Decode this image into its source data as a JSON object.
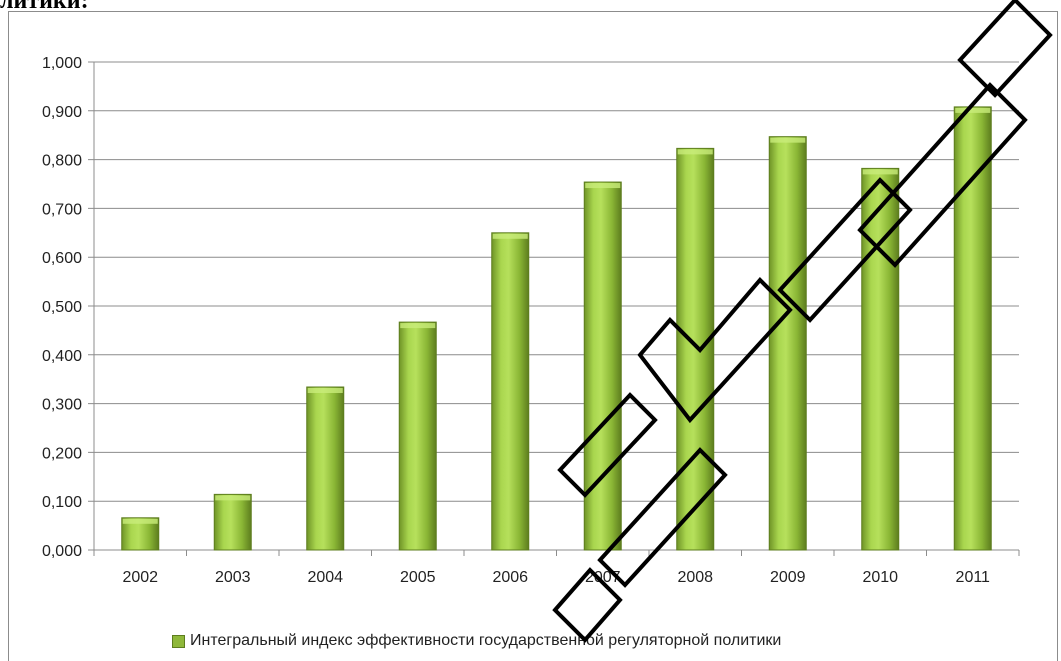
{
  "page": {
    "heading_fragment": "литики:"
  },
  "colors": {
    "bar_light": "#b4dc5a",
    "bar_mid": "#8fb83a",
    "bar_dark": "#5d7d1e",
    "grid": "#8c8c8c",
    "watermark": "#000000"
  },
  "chart_data": {
    "type": "bar",
    "categories": [
      "2002",
      "2003",
      "2004",
      "2005",
      "2006",
      "2007",
      "2008",
      "2009",
      "2010",
      "2011"
    ],
    "series": [
      {
        "name": "Интегральный индекс эффективности государственной регуляторной политики",
        "values": [
          0.066,
          0.114,
          0.334,
          0.467,
          0.65,
          0.754,
          0.823,
          0.847,
          0.782,
          0.908
        ]
      }
    ],
    "yticks": [
      "0,000",
      "0,100",
      "0,200",
      "0,300",
      "0,400",
      "0,500",
      "0,600",
      "0,700",
      "0,800",
      "0,900",
      "1,000"
    ],
    "ylim": [
      0,
      1.0
    ],
    "ystep": 0.1,
    "grid": true,
    "legend_position": "bottom"
  },
  "watermark": {
    "text": "Репозиторий БрГТУ"
  }
}
